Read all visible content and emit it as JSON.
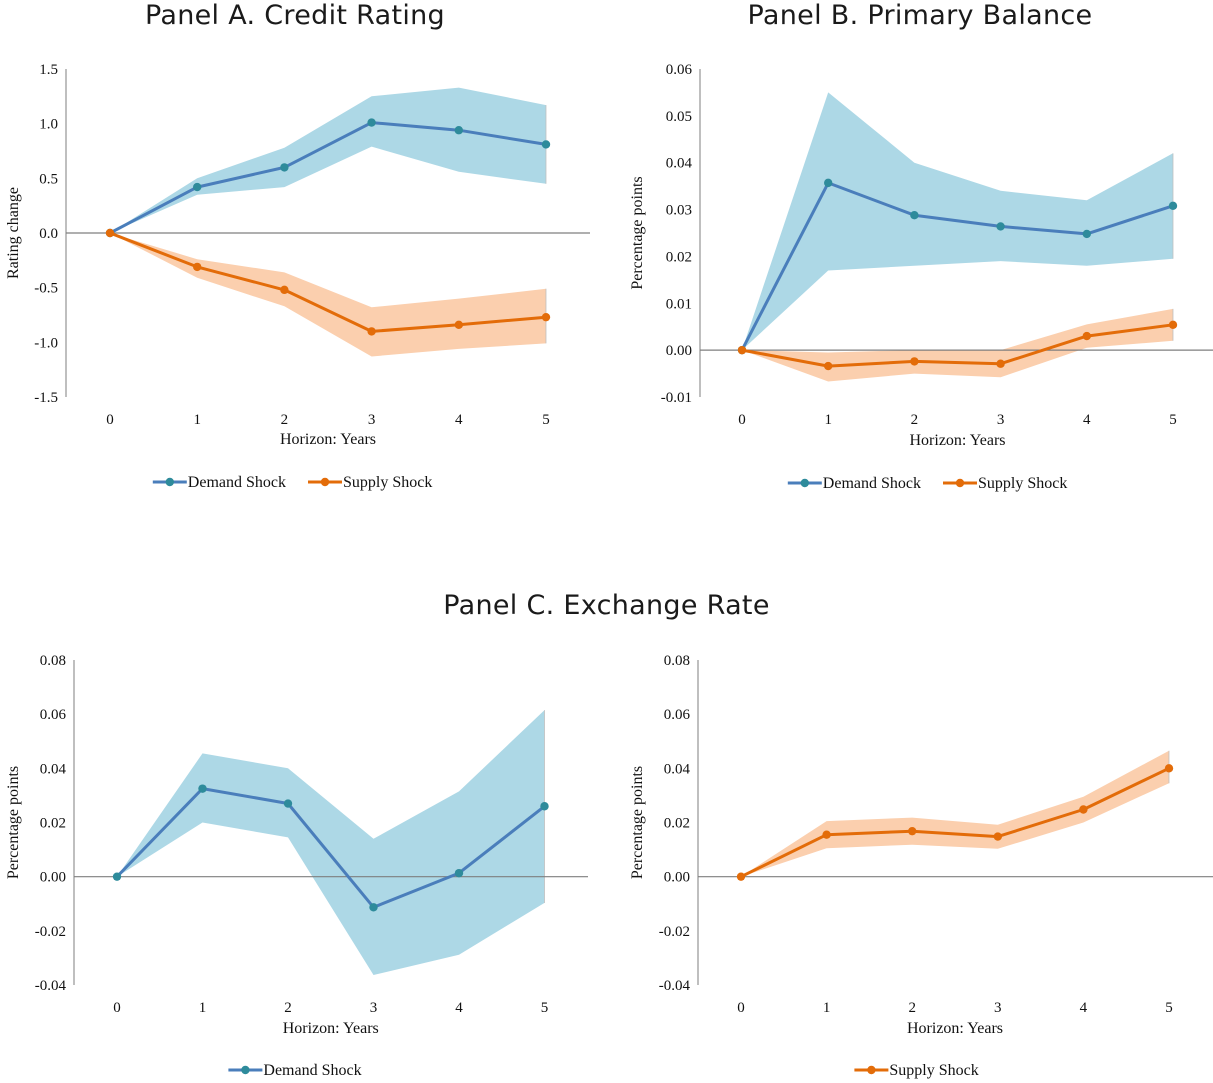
{
  "titles": {
    "panel_a": "Panel A. Credit Rating",
    "panel_b": "Panel B. Primary Balance",
    "panel_c": "Panel C. Exchange Rate"
  },
  "colors": {
    "demand_line": "#4a7ebb",
    "demand_marker": "#2e8b9b",
    "demand_band": "#add8e6",
    "supply_line": "#e36c09",
    "supply_marker": "#e36c09",
    "supply_band": "#fbcfae",
    "axis": "#7f7f7f"
  },
  "chart_data": [
    {
      "type": "line",
      "panel": "Panel A. Credit Rating",
      "xlabel": "Horizon: Years",
      "ylabel": "Rating change",
      "x": [
        0,
        1,
        2,
        3,
        4,
        5
      ],
      "ylim": [
        -1.5,
        1.5
      ],
      "yticks": [
        1.5,
        1.0,
        0.5,
        0.0,
        -0.5,
        -1.0,
        -1.5
      ],
      "ytick_decimals": 1,
      "legend_position": "bottom",
      "series": [
        {
          "name": "Demand Shock",
          "values": [
            0,
            0.42,
            0.6,
            1.01,
            0.94,
            0.81
          ],
          "upper": [
            0,
            0.5,
            0.78,
            1.25,
            1.33,
            1.17
          ],
          "lower": [
            0,
            0.35,
            0.42,
            0.79,
            0.56,
            0.45
          ]
        },
        {
          "name": "Supply Shock",
          "values": [
            0,
            -0.31,
            -0.52,
            -0.9,
            -0.84,
            -0.77
          ],
          "upper": [
            0,
            -0.24,
            -0.36,
            -0.68,
            -0.6,
            -0.51
          ],
          "lower": [
            0,
            -0.41,
            -0.67,
            -1.13,
            -1.06,
            -1.01
          ]
        }
      ]
    },
    {
      "type": "line",
      "panel": "Panel B. Primary Balance",
      "xlabel": "Horizon: Years",
      "ylabel": "Percentage points",
      "x": [
        0,
        1,
        2,
        3,
        4,
        5
      ],
      "ylim": [
        -0.01,
        0.06
      ],
      "yticks": [
        0.06,
        0.05,
        0.04,
        0.03,
        0.02,
        0.01,
        0.0,
        -0.01
      ],
      "ytick_decimals": 2,
      "legend_position": "bottom",
      "series": [
        {
          "name": "Demand Shock",
          "values": [
            0,
            0.0357,
            0.0288,
            0.0264,
            0.0248,
            0.0308
          ],
          "upper": [
            0,
            0.055,
            0.04,
            0.034,
            0.032,
            0.042
          ],
          "lower": [
            0,
            0.017,
            0.018,
            0.019,
            0.018,
            0.0195
          ]
        },
        {
          "name": "Supply Shock",
          "values": [
            0,
            -0.0034,
            -0.0024,
            -0.0029,
            0.003,
            0.0054
          ],
          "upper": [
            0,
            -0.0005,
            0.0,
            0.0,
            0.0055,
            0.0088
          ],
          "lower": [
            0,
            -0.0067,
            -0.005,
            -0.0058,
            0.0005,
            0.002
          ]
        }
      ]
    },
    {
      "type": "line",
      "panel": "Panel C. Exchange Rate",
      "xlabel": "Horizon: Years",
      "ylabel": "Percentage points",
      "x": [
        0,
        1,
        2,
        3,
        4,
        5
      ],
      "ylim": [
        -0.04,
        0.08
      ],
      "yticks": [
        0.08,
        0.06,
        0.04,
        0.02,
        0.0,
        -0.02,
        -0.04
      ],
      "ytick_decimals": 2,
      "legend_position": "bottom",
      "series": [
        {
          "name": "Demand Shock",
          "values": [
            0,
            0.0325,
            0.027,
            -0.0113,
            0.0013,
            0.026
          ],
          "upper": [
            0,
            0.0455,
            0.04,
            0.014,
            0.0315,
            0.0615
          ],
          "lower": [
            0,
            0.02,
            0.0145,
            -0.0363,
            -0.0288,
            -0.0097
          ]
        }
      ]
    },
    {
      "type": "line",
      "panel": "Panel C. Exchange Rate",
      "xlabel": "Horizon: Years",
      "ylabel": "Percentage points",
      "x": [
        0,
        1,
        2,
        3,
        4,
        5
      ],
      "ylim": [
        -0.04,
        0.08
      ],
      "yticks": [
        0.08,
        0.06,
        0.04,
        0.02,
        0.0,
        -0.02,
        -0.04
      ],
      "ytick_decimals": 2,
      "legend_position": "bottom",
      "series": [
        {
          "name": "Supply Shock",
          "values": [
            0,
            0.0155,
            0.0168,
            0.0148,
            0.0248,
            0.04
          ],
          "upper": [
            0,
            0.0205,
            0.0218,
            0.0192,
            0.0295,
            0.0465
          ],
          "lower": [
            0,
            0.0105,
            0.0118,
            0.0103,
            0.02,
            0.0345
          ]
        }
      ]
    }
  ]
}
